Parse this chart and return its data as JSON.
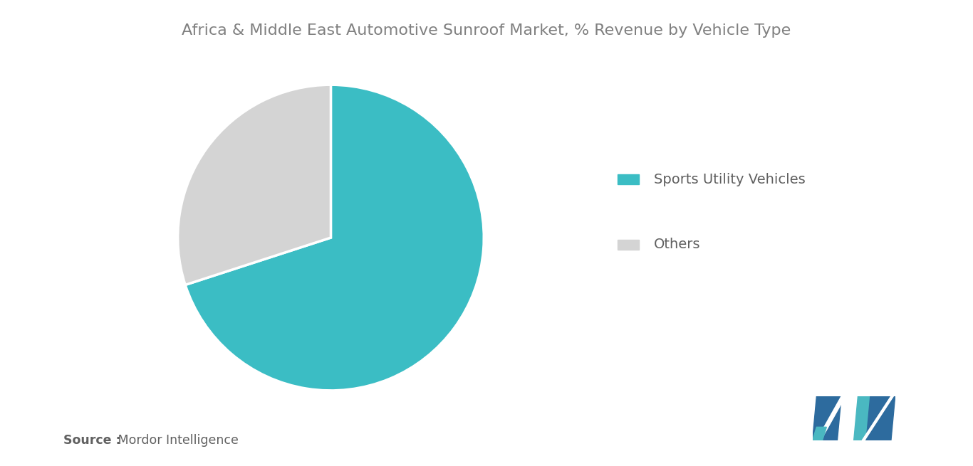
{
  "title": "Africa & Middle East Automotive Sunroof Market, % Revenue by Vehicle Type",
  "slices": [
    {
      "label": "Sports Utility Vehicles",
      "value": 70,
      "color": "#3bbdc4"
    },
    {
      "label": "Others",
      "value": 30,
      "color": "#d4d4d4"
    }
  ],
  "background_color": "#ffffff",
  "title_color": "#808080",
  "title_fontsize": 16,
  "legend_fontsize": 14,
  "legend_text_color": "#606060",
  "source_bold": "Source :",
  "source_normal": " Mordor Intelligence",
  "source_fontsize": 12.5,
  "start_angle": 90
}
